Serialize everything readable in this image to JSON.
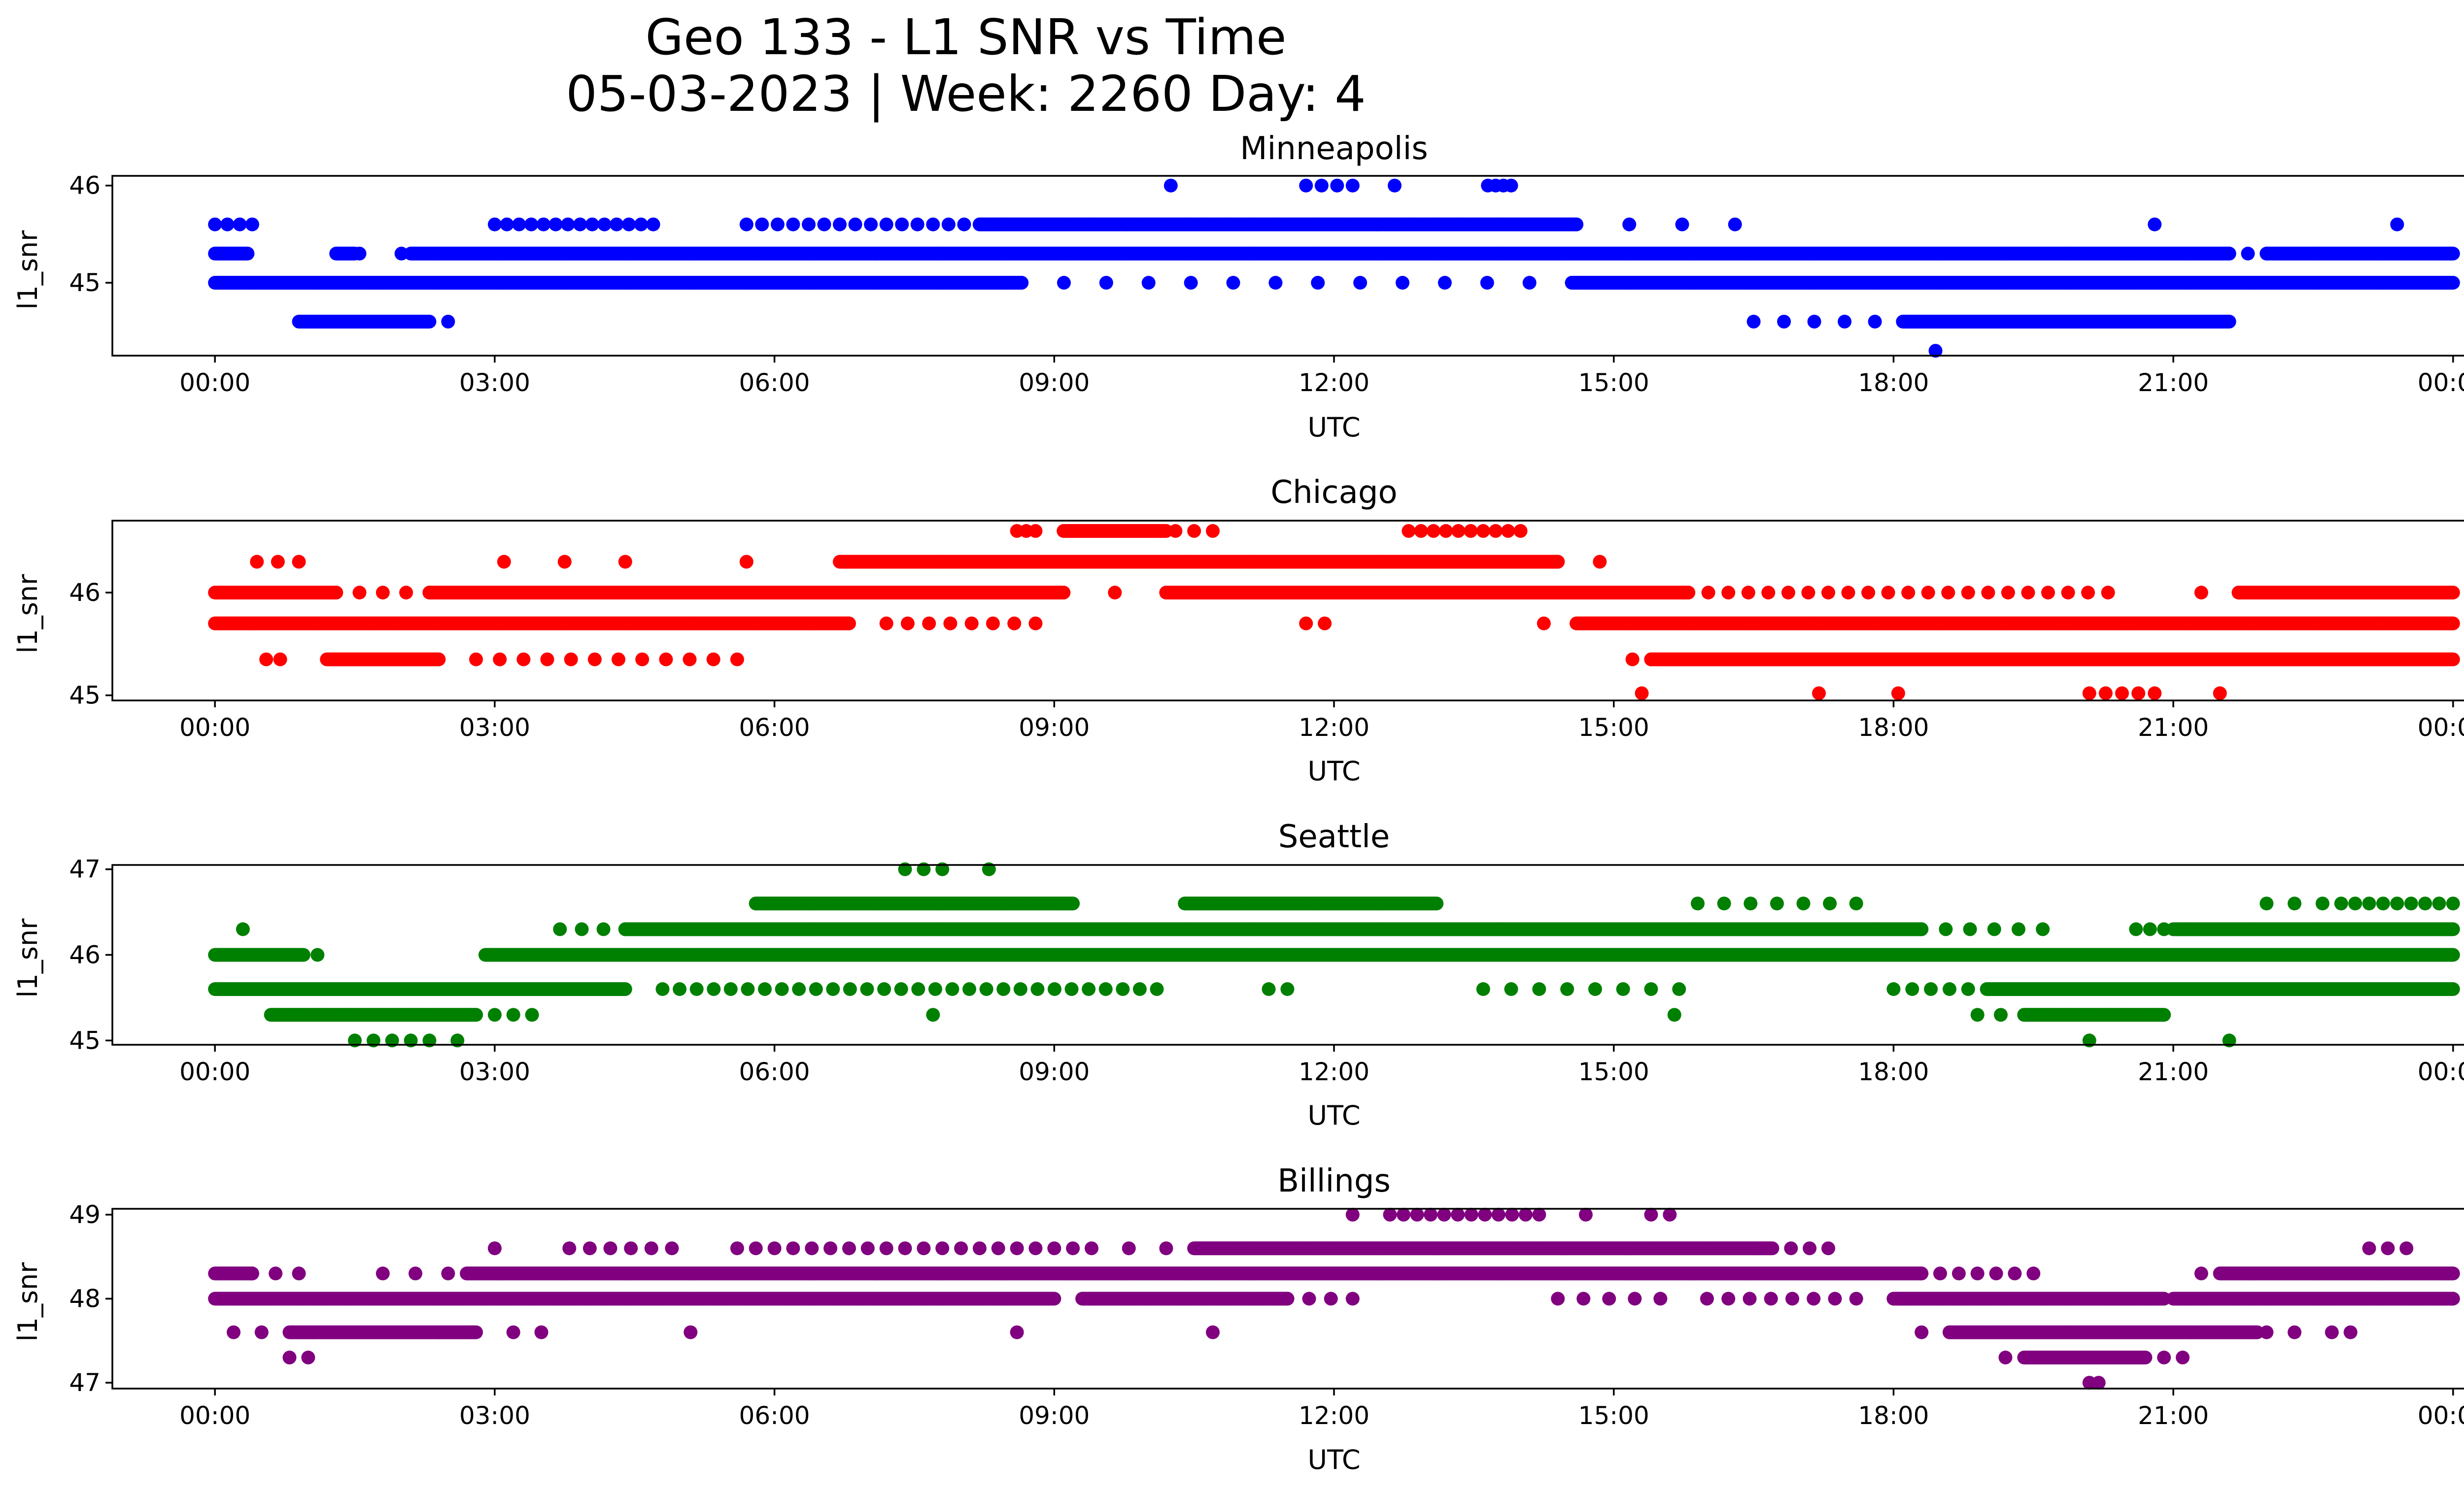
{
  "figure": {
    "title_line1": "Geo 133 - L1 SNR vs Time",
    "title_line2": "05-03-2023 | Week: 2260 Day: 4"
  },
  "chart_data": [
    {
      "type": "scatter",
      "title": "Minneapolis",
      "xlabel": "UTC",
      "ylabel": "l1_snr",
      "color": "#0000ff",
      "xlim_hours": [
        -1.1,
        25.1
      ],
      "ylim": [
        44.25,
        46.1
      ],
      "xticks": [
        0,
        3,
        6,
        9,
        12,
        15,
        18,
        21,
        24
      ],
      "xtick_labels": [
        "00:00",
        "03:00",
        "06:00",
        "09:00",
        "12:00",
        "15:00",
        "18:00",
        "21:00",
        "00:00"
      ],
      "yticks": [
        45,
        46
      ],
      "ytick_labels": [
        "45",
        "46"
      ],
      "bands": [
        {
          "y": 45.3,
          "segments": [
            [
              0.0,
              0.35
            ],
            [
              1.3,
              1.5
            ],
            [
              2.1,
              21.6
            ],
            [
              22.0,
              24.0
            ]
          ],
          "scatter": [
            [
              1.55,
              2.0,
              2
            ],
            [
              21.6,
              22.0,
              3
            ]
          ]
        },
        {
          "y": 45.0,
          "segments": [
            [
              0.0,
              8.65
            ],
            [
              14.55,
              24.0
            ]
          ],
          "scatter": [
            [
              8.65,
              14.55,
              14
            ]
          ]
        },
        {
          "y": 45.6,
          "segments": [
            [
              8.2,
              14.6
            ]
          ],
          "scatter": [
            [
              0.0,
              0.4,
              4
            ],
            [
              3.0,
              4.7,
              14
            ],
            [
              5.7,
              8.2,
              16
            ],
            [
              14.6,
              16.3,
              4
            ],
            [
              20.8,
              21.0,
              1
            ],
            [
              23.4,
              23.5,
              1
            ]
          ]
        },
        {
          "y": 44.6,
          "segments": [
            [
              0.9,
              2.3
            ],
            [
              18.1,
              21.6
            ]
          ],
          "scatter": [
            [
              2.5,
              2.5,
              1
            ],
            [
              16.5,
              17.8,
              5
            ]
          ]
        },
        {
          "y": 44.3,
          "segments": [],
          "scatter": [
            [
              18.45,
              18.45,
              1
            ]
          ]
        },
        {
          "y": 46.0,
          "segments": [],
          "scatter": [
            [
              10.25,
              10.25,
              1
            ],
            [
              11.7,
              12.2,
              4
            ],
            [
              12.65,
              12.65,
              1
            ],
            [
              13.65,
              13.9,
              4
            ]
          ]
        }
      ]
    },
    {
      "type": "scatter",
      "title": "Chicago",
      "xlabel": "UTC",
      "ylabel": "l1_snr",
      "color": "#ff0000",
      "xlim_hours": [
        -1.1,
        25.1
      ],
      "ylim": [
        44.95,
        46.7
      ],
      "xticks": [
        0,
        3,
        6,
        9,
        12,
        15,
        18,
        21,
        24
      ],
      "xtick_labels": [
        "00:00",
        "03:00",
        "06:00",
        "09:00",
        "12:00",
        "15:00",
        "18:00",
        "21:00",
        "00:00"
      ],
      "yticks": [
        45,
        46
      ],
      "ytick_labels": [
        "45",
        "46"
      ],
      "bands": [
        {
          "y": 45.7,
          "segments": [
            [
              0.0,
              6.8
            ],
            [
              14.6,
              24.0
            ]
          ],
          "scatter": [
            [
              7.2,
              8.8,
              8
            ],
            [
              11.7,
              11.9,
              2
            ],
            [
              14.25,
              14.25,
              1
            ]
          ]
        },
        {
          "y": 46.0,
          "segments": [
            [
              0.0,
              1.3
            ],
            [
              2.3,
              9.1
            ],
            [
              10.2,
              15.8
            ],
            [
              21.7,
              24.0
            ]
          ],
          "scatter": [
            [
              1.3,
              2.3,
              5
            ],
            [
              9.1,
              10.2,
              3
            ],
            [
              15.8,
              20.3,
              22
            ],
            [
              21.3,
              21.7,
              2
            ]
          ]
        },
        {
          "y": 45.35,
          "segments": [
            [
              1.2,
              2.4
            ],
            [
              15.4,
              24.0
            ]
          ],
          "scatter": [
            [
              0.55,
              0.7,
              2
            ],
            [
              2.8,
              5.6,
              12
            ],
            [
              15.2,
              15.4,
              2
            ]
          ]
        },
        {
          "y": 46.3,
          "segments": [
            [
              6.7,
              14.4
            ]
          ],
          "scatter": [
            [
              0.45,
              0.9,
              3
            ],
            [
              3.1,
              4.4,
              3
            ],
            [
              5.7,
              5.7,
              1
            ],
            [
              14.4,
              14.5,
              1
            ],
            [
              14.85,
              14.85,
              1
            ]
          ]
        },
        {
          "y": 46.6,
          "segments": [
            [
              9.1,
              10.2
            ]
          ],
          "scatter": [
            [
              8.6,
              8.8,
              3
            ],
            [
              10.3,
              10.7,
              3
            ],
            [
              12.8,
              14.0,
              10
            ]
          ]
        },
        {
          "y": 45.02,
          "segments": [],
          "scatter": [
            [
              15.3,
              15.3,
              1
            ],
            [
              17.2,
              17.2,
              1
            ],
            [
              18.05,
              18.05,
              1
            ],
            [
              20.1,
              20.8,
              5
            ],
            [
              21.5,
              21.5,
              1
            ]
          ]
        }
      ]
    },
    {
      "type": "scatter",
      "title": "Seattle",
      "xlabel": "UTC",
      "ylabel": "l1_snr",
      "color": "#008000",
      "xlim_hours": [
        -1.1,
        25.1
      ],
      "ylim": [
        44.95,
        47.05
      ],
      "xticks": [
        0,
        3,
        6,
        9,
        12,
        15,
        18,
        21,
        24
      ],
      "xtick_labels": [
        "00:00",
        "03:00",
        "06:00",
        "09:00",
        "12:00",
        "15:00",
        "18:00",
        "21:00",
        "00:00"
      ],
      "yticks": [
        45,
        46,
        47
      ],
      "ytick_labels": [
        "45",
        "46",
        "47"
      ],
      "bands": [
        {
          "y": 46.0,
          "segments": [
            [
              0.0,
              0.95
            ],
            [
              2.9,
              24.0
            ]
          ],
          "scatter": [
            [
              1.1,
              1.1,
              1
            ]
          ]
        },
        {
          "y": 45.6,
          "segments": [
            [
              0.0,
              4.4
            ],
            [
              19.0,
              24.0
            ]
          ],
          "scatter": [
            [
              4.8,
              10.1,
              30
            ],
            [
              11.3,
              11.5,
              2
            ],
            [
              13.6,
              15.7,
              8
            ],
            [
              18.0,
              19.0,
              6
            ]
          ]
        },
        {
          "y": 46.3,
          "segments": [
            [
              4.4,
              18.3
            ],
            [
              21.0,
              24.0
            ]
          ],
          "scatter": [
            [
              0.3,
              0.3,
              1
            ],
            [
              3.7,
              4.4,
              4
            ],
            [
              18.3,
              19.6,
              6
            ],
            [
              20.6,
              20.9,
              3
            ]
          ]
        },
        {
          "y": 45.3,
          "segments": [
            [
              0.6,
              2.8
            ],
            [
              19.4,
              20.9
            ]
          ],
          "scatter": [
            [
              2.8,
              3.4,
              4
            ],
            [
              7.7,
              7.7,
              1
            ],
            [
              18.9,
              19.4,
              3
            ],
            [
              15.65,
              15.65,
              1
            ]
          ]
        },
        {
          "y": 46.6,
          "segments": [
            [
              5.8,
              9.2
            ],
            [
              10.4,
              13.1
            ]
          ],
          "scatter": [
            [
              15.9,
              17.6,
              7
            ],
            [
              22.0,
              22.6,
              3
            ],
            [
              22.8,
              24.0,
              9
            ]
          ]
        },
        {
          "y": 47.0,
          "segments": [],
          "scatter": [
            [
              7.4,
              7.8,
              3
            ],
            [
              8.3,
              8.3,
              1
            ]
          ]
        },
        {
          "y": 45.0,
          "segments": [],
          "scatter": [
            [
              1.5,
              2.3,
              5
            ],
            [
              2.6,
              2.6,
              1
            ],
            [
              20.1,
              20.1,
              1
            ],
            [
              21.6,
              21.6,
              1
            ]
          ]
        }
      ]
    },
    {
      "type": "scatter",
      "title": "Billings",
      "xlabel": "UTC",
      "ylabel": "l1_snr",
      "color": "#800080",
      "xlim_hours": [
        -1.1,
        25.1
      ],
      "ylim": [
        46.93,
        49.07
      ],
      "xticks": [
        0,
        3,
        6,
        9,
        12,
        15,
        18,
        21,
        24
      ],
      "xtick_labels": [
        "00:00",
        "03:00",
        "06:00",
        "09:00",
        "12:00",
        "15:00",
        "18:00",
        "21:00",
        "00:00"
      ],
      "yticks": [
        47,
        48,
        49
      ],
      "ytick_labels": [
        "47",
        "48",
        "49"
      ],
      "bands": [
        {
          "y": 48.0,
          "segments": [
            [
              0.0,
              9.0
            ],
            [
              9.3,
              11.5
            ],
            [
              18.0,
              20.9
            ],
            [
              21.0,
              24.0
            ]
          ],
          "scatter": [
            [
              11.5,
              12.2,
              4
            ],
            [
              14.4,
              15.5,
              5
            ],
            [
              16.0,
              17.6,
              8
            ]
          ]
        },
        {
          "y": 48.3,
          "segments": [
            [
              0.0,
              0.4
            ],
            [
              2.7,
              18.3
            ],
            [
              21.5,
              24.0
            ]
          ],
          "scatter": [
            [
              0.4,
              0.9,
              3
            ],
            [
              1.8,
              2.5,
              3
            ],
            [
              18.3,
              19.5,
              7
            ],
            [
              21.3,
              21.5,
              1
            ]
          ]
        },
        {
          "y": 48.6,
          "segments": [
            [
              10.5,
              16.7
            ]
          ],
          "scatter": [
            [
              3.0,
              3.0,
              1
            ],
            [
              3.8,
              4.9,
              6
            ],
            [
              5.6,
              9.4,
              20
            ],
            [
              9.8,
              10.2,
              2
            ],
            [
              16.9,
              17.3,
              3
            ],
            [
              23.1,
              23.5,
              3
            ]
          ]
        },
        {
          "y": 47.6,
          "segments": [
            [
              0.8,
              2.8
            ],
            [
              18.6,
              21.9
            ]
          ],
          "scatter": [
            [
              0.2,
              0.5,
              2
            ],
            [
              3.2,
              3.5,
              2
            ],
            [
              5.1,
              5.1,
              1
            ],
            [
              8.6,
              8.6,
              1
            ],
            [
              10.7,
              10.7,
              1
            ],
            [
              18.3,
              18.6,
              2
            ],
            [
              22.0,
              22.3,
              2
            ],
            [
              22.7,
              22.9,
              2
            ]
          ]
        },
        {
          "y": 47.3,
          "segments": [
            [
              19.4,
              20.7
            ]
          ],
          "scatter": [
            [
              0.8,
              1.0,
              2
            ],
            [
              19.2,
              19.4,
              1
            ],
            [
              20.9,
              21.1,
              2
            ]
          ]
        },
        {
          "y": 49.0,
          "segments": [],
          "scatter": [
            [
              12.2,
              12.2,
              1
            ],
            [
              12.6,
              14.2,
              12
            ],
            [
              14.7,
              14.7,
              1
            ],
            [
              15.4,
              15.6,
              2
            ]
          ]
        },
        {
          "y": 47.0,
          "segments": [],
          "scatter": [
            [
              20.1,
              20.2,
              2
            ]
          ]
        }
      ]
    }
  ]
}
